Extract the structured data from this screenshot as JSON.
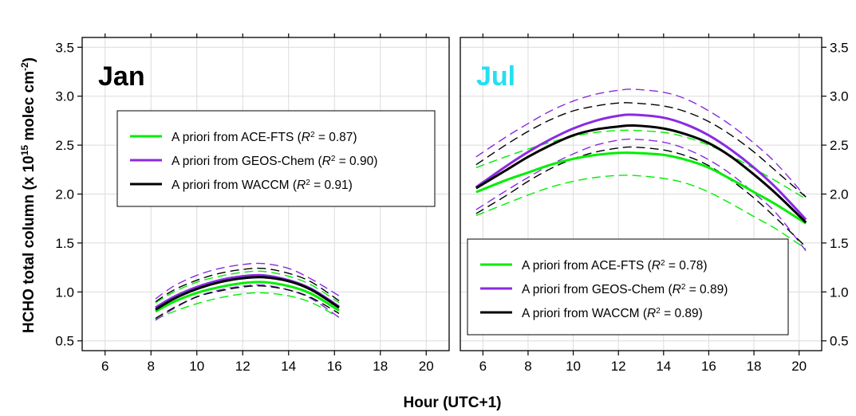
{
  "xlabel": "Hour (UTC+1)",
  "ylabel_main": "HCHO total column (x 10",
  "ylabel_exp": "15",
  "ylabel_mid": " molec cm",
  "ylabel_exp2": "-2",
  "ylabel_end": ")",
  "r2_symbol": "R",
  "r2_exp": "2",
  "chart_data": [
    {
      "type": "line",
      "title": "Jan",
      "title_color": "#000000",
      "xlim": [
        5,
        21
      ],
      "ylim": [
        0.4,
        3.6
      ],
      "xticks": [
        "6",
        "8",
        "10",
        "12",
        "14",
        "16",
        "18",
        "20"
      ],
      "yticks": [
        "0.5",
        "1.0",
        "1.5",
        "2.0",
        "2.5",
        "3.0",
        "3.5"
      ],
      "y_axis_side": "left",
      "grid": true,
      "legend_position": "upper-left",
      "x": [
        8.2,
        9,
        10,
        11,
        12,
        12.9,
        14,
        15,
        16.2
      ],
      "series": [
        {
          "name": "A priori from ACE-FTS",
          "r2": "0.87",
          "color": "#00ee00",
          "width": 3,
          "dash": false,
          "values": [
            0.8,
            0.9,
            0.99,
            1.05,
            1.09,
            1.1,
            1.06,
            0.98,
            0.81
          ]
        },
        {
          "name": "A priori from GEOS-Chem",
          "r2": "0.90",
          "color": "#8a2be2",
          "width": 3,
          "dash": false,
          "values": [
            0.84,
            0.95,
            1.05,
            1.12,
            1.16,
            1.17,
            1.12,
            1.03,
            0.85
          ]
        },
        {
          "name": "A priori from WACCM",
          "r2": "0.91",
          "color": "#000000",
          "width": 3,
          "dash": false,
          "values": [
            0.82,
            0.93,
            1.03,
            1.1,
            1.14,
            1.15,
            1.11,
            1.02,
            0.84
          ]
        },
        {
          "color": "#00ee00",
          "width": 1.4,
          "dash": true,
          "values": [
            0.72,
            0.8,
            0.88,
            0.94,
            0.98,
            0.99,
            0.96,
            0.89,
            0.74
          ]
        },
        {
          "color": "#00ee00",
          "width": 1.4,
          "dash": true,
          "values": [
            0.89,
            1.0,
            1.1,
            1.16,
            1.2,
            1.21,
            1.16,
            1.07,
            0.89
          ]
        },
        {
          "color": "#8a2be2",
          "width": 1.4,
          "dash": true,
          "values": [
            0.71,
            0.83,
            0.95,
            1.02,
            1.06,
            1.07,
            1.02,
            0.93,
            0.74
          ]
        },
        {
          "color": "#8a2be2",
          "width": 1.4,
          "dash": true,
          "values": [
            0.93,
            1.06,
            1.17,
            1.24,
            1.28,
            1.29,
            1.24,
            1.13,
            0.96
          ]
        },
        {
          "color": "#000000",
          "width": 1.4,
          "dash": true,
          "values": [
            0.73,
            0.84,
            0.95,
            1.01,
            1.05,
            1.06,
            1.02,
            0.94,
            0.78
          ]
        },
        {
          "color": "#000000",
          "width": 1.4,
          "dash": true,
          "values": [
            0.9,
            1.02,
            1.12,
            1.19,
            1.23,
            1.24,
            1.19,
            1.1,
            0.91
          ]
        }
      ]
    },
    {
      "type": "line",
      "title": "Jul",
      "title_color": "#22e0f0",
      "xlim": [
        5,
        21
      ],
      "ylim": [
        0.4,
        3.6
      ],
      "xticks": [
        "6",
        "8",
        "10",
        "12",
        "14",
        "16",
        "18",
        "20"
      ],
      "yticks": [
        "0.5",
        "1.0",
        "1.5",
        "2.0",
        "2.5",
        "3.0",
        "3.5"
      ],
      "y_axis_side": "right",
      "grid": true,
      "legend_position": "lower-left",
      "x": [
        5.7,
        7,
        8,
        9,
        10,
        11,
        12,
        12.7,
        14,
        15,
        16,
        17,
        18,
        19,
        20.3
      ],
      "series": [
        {
          "name": "A priori from ACE-FTS",
          "r2": "0.78",
          "color": "#00ee00",
          "width": 3,
          "dash": false,
          "values": [
            2.02,
            2.14,
            2.22,
            2.3,
            2.36,
            2.4,
            2.42,
            2.42,
            2.4,
            2.35,
            2.27,
            2.15,
            2.02,
            1.89,
            1.7
          ]
        },
        {
          "name": "A priori from GEOS-Chem",
          "r2": "0.89",
          "color": "#8a2be2",
          "width": 3,
          "dash": false,
          "values": [
            2.07,
            2.28,
            2.43,
            2.56,
            2.67,
            2.75,
            2.8,
            2.81,
            2.78,
            2.71,
            2.6,
            2.45,
            2.27,
            2.06,
            1.74
          ]
        },
        {
          "name": "A priori from WACCM",
          "r2": "0.89",
          "color": "#000000",
          "width": 3,
          "dash": false,
          "values": [
            2.06,
            2.24,
            2.38,
            2.5,
            2.6,
            2.66,
            2.69,
            2.7,
            2.67,
            2.61,
            2.52,
            2.38,
            2.2,
            2.0,
            1.71
          ]
        },
        {
          "color": "#00ee00",
          "width": 1.4,
          "dash": true,
          "values": [
            1.78,
            1.9,
            1.99,
            2.07,
            2.13,
            2.17,
            2.19,
            2.19,
            2.16,
            2.11,
            2.02,
            1.9,
            1.77,
            1.64,
            1.44
          ]
        },
        {
          "color": "#00ee00",
          "width": 1.4,
          "dash": true,
          "values": [
            2.27,
            2.38,
            2.46,
            2.53,
            2.59,
            2.63,
            2.65,
            2.65,
            2.63,
            2.58,
            2.5,
            2.39,
            2.26,
            2.13,
            1.95
          ]
        },
        {
          "color": "#8a2be2",
          "width": 1.4,
          "dash": true,
          "values": [
            1.84,
            2.03,
            2.17,
            2.3,
            2.41,
            2.5,
            2.55,
            2.56,
            2.53,
            2.46,
            2.35,
            2.2,
            2.01,
            1.8,
            1.42
          ]
        },
        {
          "color": "#8a2be2",
          "width": 1.4,
          "dash": true,
          "values": [
            2.38,
            2.58,
            2.72,
            2.85,
            2.95,
            3.02,
            3.06,
            3.07,
            3.04,
            2.97,
            2.85,
            2.7,
            2.52,
            2.31,
            1.97
          ]
        },
        {
          "color": "#000000",
          "width": 1.4,
          "dash": true,
          "values": [
            1.8,
            1.98,
            2.13,
            2.26,
            2.36,
            2.43,
            2.47,
            2.48,
            2.45,
            2.39,
            2.29,
            2.14,
            1.96,
            1.75,
            1.46
          ]
        },
        {
          "color": "#000000",
          "width": 1.4,
          "dash": true,
          "values": [
            2.3,
            2.5,
            2.64,
            2.76,
            2.85,
            2.9,
            2.93,
            2.93,
            2.9,
            2.84,
            2.74,
            2.6,
            2.43,
            2.23,
            1.97
          ]
        }
      ]
    }
  ]
}
